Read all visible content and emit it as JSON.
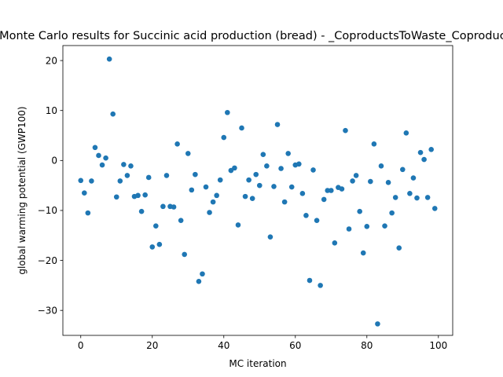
{
  "chart_data": {
    "type": "scatter",
    "title": "Monte Carlo results for Succinic acid production (bread) - _CoproductsToWaste_Coproducts",
    "xlabel": "MC iteration",
    "ylabel": "global warming potential (GWP100)",
    "xlim": [
      -5,
      104
    ],
    "ylim": [
      -35,
      23
    ],
    "xticks": [
      0,
      20,
      40,
      60,
      80,
      100
    ],
    "yticks": [
      -30,
      -20,
      -10,
      0,
      10,
      20
    ],
    "xtick_labels": [
      "0",
      "20",
      "40",
      "60",
      "80",
      "100"
    ],
    "ytick_labels": [
      "−30",
      "−20",
      "−10",
      "0",
      "10",
      "20"
    ],
    "grid": false,
    "marker_color": "#1f77b4",
    "x": [
      0,
      1,
      2,
      3,
      4,
      5,
      6,
      7,
      8,
      9,
      10,
      11,
      12,
      13,
      14,
      15,
      16,
      17,
      18,
      19,
      20,
      21,
      22,
      23,
      24,
      25,
      26,
      27,
      28,
      29,
      30,
      31,
      32,
      33,
      34,
      35,
      36,
      37,
      38,
      39,
      40,
      41,
      42,
      43,
      44,
      45,
      46,
      47,
      48,
      49,
      50,
      51,
      52,
      53,
      54,
      55,
      56,
      57,
      58,
      59,
      60,
      61,
      62,
      63,
      64,
      65,
      66,
      67,
      68,
      69,
      70,
      71,
      72,
      73,
      74,
      75,
      76,
      77,
      78,
      79,
      80,
      81,
      82,
      83,
      84,
      85,
      86,
      87,
      88,
      89,
      90,
      91,
      92,
      93,
      94,
      95,
      96,
      97,
      98,
      99
    ],
    "y": [
      -4.0,
      -6.5,
      -10.5,
      -4.1,
      2.6,
      1.0,
      -0.9,
      0.5,
      20.3,
      9.3,
      -7.3,
      -4.1,
      -0.8,
      -3.0,
      -1.1,
      -7.2,
      -7.0,
      -10.2,
      -6.9,
      -3.4,
      -17.3,
      -13.1,
      -16.8,
      -9.2,
      -3.0,
      -9.2,
      -9.3,
      3.3,
      -12.0,
      -18.8,
      1.4,
      -5.9,
      -2.8,
      -24.2,
      -22.7,
      -5.3,
      -10.4,
      -8.3,
      -7.0,
      -3.9,
      4.6,
      9.6,
      -2.0,
      -1.5,
      -12.9,
      6.5,
      -7.2,
      -3.9,
      -7.6,
      -2.8,
      -5.0,
      1.2,
      -1.1,
      -15.3,
      -5.2,
      7.2,
      -1.6,
      -8.3,
      1.4,
      -5.3,
      -0.9,
      -0.7,
      -6.6,
      -11.0,
      -24.0,
      -1.9,
      -12.0,
      -25.0,
      -7.8,
      -6.0,
      -6.0,
      -16.5,
      -5.4,
      -5.7,
      6.0,
      -13.7,
      -4.1,
      -3.0,
      -10.2,
      -18.5,
      -13.2,
      -4.2,
      3.3,
      -32.7,
      -1.1,
      -13.1,
      -4.4,
      -10.5,
      -7.4,
      -17.5,
      -1.8,
      5.5,
      -6.6,
      -3.5,
      -7.5,
      1.6,
      0.2,
      -7.4,
      2.2,
      -9.6
    ]
  }
}
